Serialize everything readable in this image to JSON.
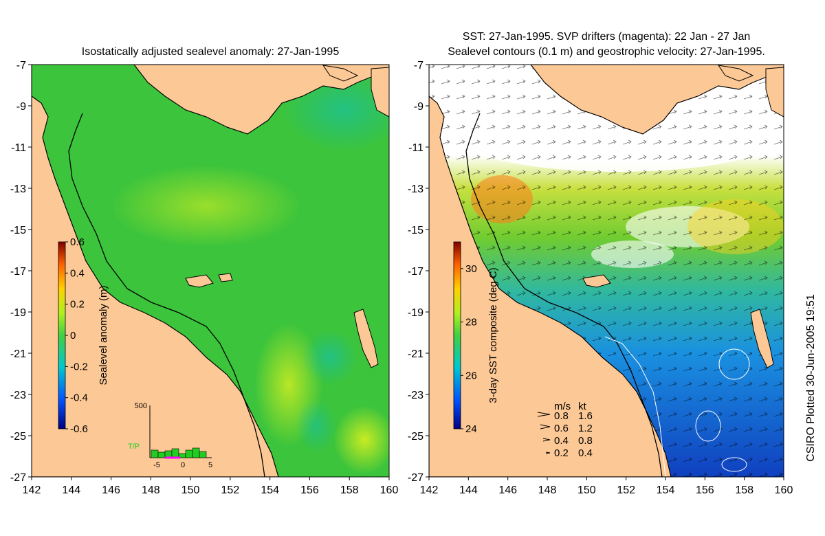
{
  "left_panel": {
    "title": "Isostatically adjusted sealevel anomaly: 27-Jan-1995",
    "colorbar_label": "Sealevel anomaly (m)",
    "colorbar_ticks": [
      "0.6",
      "0.4",
      "0.2",
      "0",
      "-0.2",
      "-0.4",
      "-0.6"
    ],
    "colorbar_range": [
      -0.6,
      0.6
    ],
    "inset": {
      "label": "T/P",
      "label_color": "#22cc22",
      "y_label": "500",
      "x_ticks": [
        "-5",
        "0",
        "5"
      ],
      "bars_color": "#22cc22",
      "today_color": "#ff00ff"
    }
  },
  "right_panel": {
    "title_line1": "SST: 27-Jan-1995. SVP drifters (magenta): 22 Jan - 27 Jan",
    "title_line2": "Sealevel contours (0.1 m) and geostrophic velocity: 27-Jan-1995.",
    "colorbar_label": "3-day SST composite (deg C)",
    "colorbar_ticks": [
      "30",
      "28",
      "26",
      "24"
    ],
    "colorbar_range": [
      24,
      31
    ],
    "velocity_legend": {
      "header_ms": "m/s",
      "header_kt": "kt",
      "rows": [
        {
          "ms": "0.8",
          "kt": "1.6"
        },
        {
          "ms": "0.6",
          "kt": "1.2"
        },
        {
          "ms": "0.4",
          "kt": "0.8"
        },
        {
          "ms": "0.2",
          "kt": "0.4"
        }
      ]
    }
  },
  "axes": {
    "lon_ticks": [
      "142",
      "144",
      "146",
      "148",
      "150",
      "152",
      "154",
      "156",
      "158",
      "160"
    ],
    "lat_ticks": [
      "-7",
      "-9",
      "-11",
      "-13",
      "-15",
      "-17",
      "-19",
      "-21",
      "-23",
      "-25",
      "-27"
    ],
    "lon_range": [
      142,
      160
    ],
    "lat_range": [
      -27,
      -7
    ]
  },
  "credit": "CSIRO Plotted 30-Jun-2005 19:51",
  "colors": {
    "land": "#fcc895",
    "sea_left": "#3cc43c",
    "sea_right_warm": "#66cc33",
    "sea_right_cool": "#1a7fe0",
    "cloud": "#ffffff",
    "coast": "#000000"
  }
}
